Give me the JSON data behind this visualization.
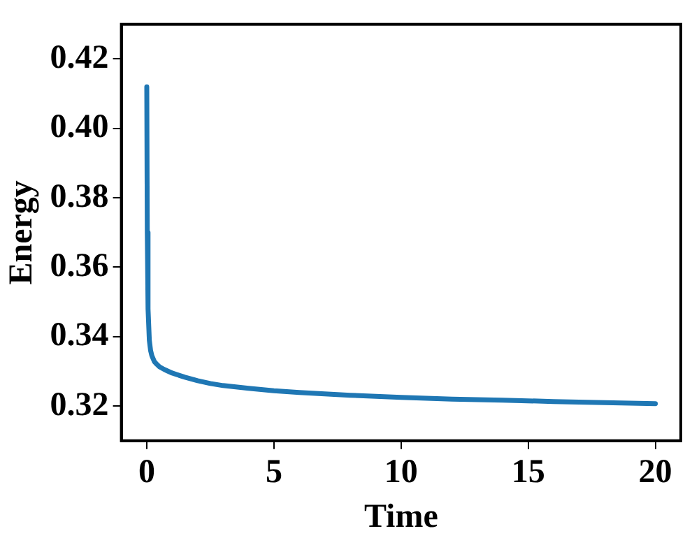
{
  "chart_data": {
    "type": "line",
    "xlabel": "Time",
    "ylabel": "Energy",
    "x": [
      0,
      0.02,
      0.05,
      0.1,
      0.15,
      0.2,
      0.3,
      0.4,
      0.5,
      0.7,
      1,
      1.5,
      2,
      2.5,
      3,
      4,
      5,
      6,
      7,
      8,
      10,
      12,
      14,
      16,
      18,
      20
    ],
    "series": [
      {
        "color": "#1f77b4",
        "values": [
          0.412,
          0.37,
          0.348,
          0.339,
          0.336,
          0.3345,
          0.3328,
          0.332,
          0.3313,
          0.3305,
          0.3295,
          0.3283,
          0.3273,
          0.3265,
          0.3259,
          0.3251,
          0.3244,
          0.3239,
          0.3235,
          0.3231,
          0.3225,
          0.322,
          0.3217,
          0.3213,
          0.321,
          0.3207
        ]
      }
    ],
    "xlim": [
      -1,
      21
    ],
    "xticks": [
      0,
      5,
      10,
      15,
      20
    ],
    "ylim": [
      0.31,
      0.43
    ],
    "yticks": [
      0.32,
      0.34,
      0.36,
      0.38,
      {
        "value": 0.4,
        "label": "0.40"
      },
      0.42
    ],
    "grid": false,
    "legend": false,
    "marker": "none",
    "line_style": "solid"
  }
}
